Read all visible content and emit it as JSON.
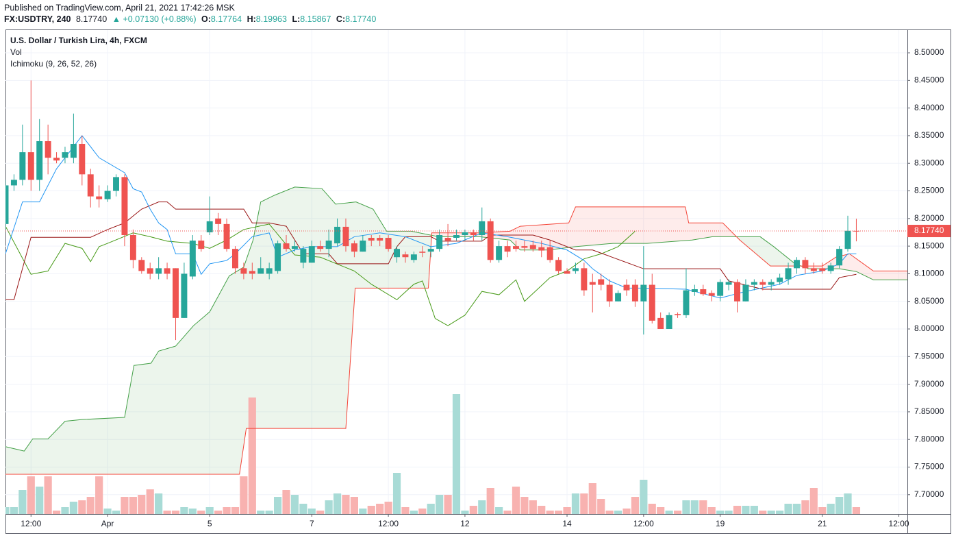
{
  "header": {
    "published": "Published on TradingView.com, April 21, 2021 17:42:26 MSK",
    "symbol": "FX:USDTRY, 240",
    "last": "8.17740",
    "change": "▲ +0.07130 (+0.88%)",
    "ohlc": [
      {
        "label": "O:",
        "value": "8.17764"
      },
      {
        "label": "H:",
        "value": "8.19963"
      },
      {
        "label": "L:",
        "value": "8.15867"
      },
      {
        "label": "C:",
        "value": "8.17740"
      }
    ]
  },
  "chart_data": {
    "type": "candlestick",
    "title": "U.S. Dollar / Turkish Lira, 4h, FXCM",
    "indicators": [
      "Vol",
      "Ichimoku (9, 26, 52, 26)"
    ],
    "categories": [
      null,
      null,
      null,
      null,
      null,
      null,
      null,
      null,
      null,
      null,
      null,
      null,
      null,
      null,
      null,
      null,
      null,
      null,
      null,
      null,
      null,
      null,
      null,
      null,
      null,
      null,
      null,
      null,
      null,
      null,
      null,
      null,
      null,
      null,
      null,
      null,
      null,
      null,
      null,
      null,
      null,
      null,
      null,
      null,
      null,
      null,
      null,
      null,
      null,
      null,
      null,
      null,
      null,
      null,
      null,
      null,
      null,
      null,
      null,
      null,
      null,
      null,
      null,
      null,
      null,
      null,
      null,
      null,
      null,
      null,
      null,
      null,
      null,
      null,
      null,
      null,
      null,
      null,
      null,
      null,
      null,
      null,
      null,
      null,
      null,
      null,
      null,
      null,
      null,
      null,
      null,
      null,
      null,
      null,
      null,
      null,
      null,
      null,
      null,
      null,
      null
    ],
    "open": [
      8.19,
      8.26,
      8.27,
      8.32,
      8.27,
      8.34,
      8.31,
      8.31,
      8.31,
      8.335,
      8.28,
      8.24,
      8.235,
      8.25,
      8.275,
      8.17,
      8.125,
      8.11,
      8.1,
      8.11,
      8.11,
      8.02,
      8.095,
      8.16,
      8.175,
      8.2,
      8.19,
      8.145,
      8.11,
      8.105,
      8.1,
      8.1,
      8.105,
      8.155,
      8.145,
      8.12,
      8.12,
      8.15,
      8.145,
      8.155,
      8.185,
      8.155,
      8.14,
      8.165,
      8.165,
      8.165,
      8.13,
      8.135,
      8.125,
      8.14,
      8.14,
      8.145,
      8.165,
      8.165,
      8.17,
      8.175,
      8.17,
      8.195,
      8.125,
      8.15,
      8.15,
      8.15,
      8.152,
      8.148,
      8.148,
      8.125,
      8.105,
      8.105,
      8.11,
      8.085,
      8.09,
      8.08,
      8.05,
      8.08,
      8.08,
      8.05,
      8.08,
      8.02,
      8.0,
      8.027,
      8.025,
      8.067,
      8.072,
      8.065,
      8.06,
      8.08,
      8.085,
      8.05,
      8.08,
      8.085,
      8.08,
      8.085,
      8.09,
      8.11,
      8.125,
      8.11,
      8.11,
      8.105,
      8.115,
      8.145,
      8.17764
    ],
    "high": [
      8.27,
      8.28,
      8.37,
      8.45,
      8.38,
      8.37,
      8.32,
      8.33,
      8.39,
      8.35,
      8.29,
      8.26,
      8.26,
      8.28,
      8.28,
      8.18,
      8.13,
      8.12,
      8.13,
      8.12,
      8.11,
      8.12,
      8.17,
      8.17,
      8.24,
      8.21,
      8.2,
      8.15,
      8.12,
      8.12,
      8.13,
      8.12,
      8.16,
      8.17,
      8.16,
      8.15,
      8.16,
      8.16,
      8.18,
      8.2,
      8.2,
      8.16,
      8.17,
      8.17,
      8.17,
      8.17,
      8.15,
      8.14,
      8.14,
      8.15,
      8.15,
      8.18,
      8.19,
      8.18,
      8.18,
      8.18,
      8.22,
      8.2,
      8.16,
      8.16,
      8.16,
      8.16,
      8.16,
      8.16,
      8.16,
      8.13,
      8.11,
      8.12,
      8.12,
      8.1,
      8.1,
      8.09,
      8.07,
      8.09,
      8.09,
      8.15,
      8.1,
      8.03,
      8.03,
      8.03,
      8.11,
      8.08,
      8.08,
      8.07,
      8.09,
      8.09,
      8.09,
      8.09,
      8.09,
      8.09,
      8.09,
      8.1,
      8.12,
      8.13,
      8.13,
      8.12,
      8.12,
      8.12,
      8.15,
      8.205,
      8.19963
    ],
    "low": [
      8.18,
      8.25,
      8.26,
      8.25,
      8.25,
      8.28,
      8.3,
      8.3,
      8.3,
      8.26,
      8.22,
      8.22,
      8.23,
      8.24,
      8.15,
      8.11,
      8.1,
      8.09,
      8.09,
      8.09,
      7.98,
      8.02,
      8.09,
      8.14,
      8.17,
      8.17,
      8.14,
      8.1,
      8.09,
      8.09,
      8.1,
      8.09,
      8.1,
      8.14,
      8.14,
      8.11,
      8.12,
      8.14,
      8.13,
      8.15,
      8.14,
      8.13,
      8.14,
      8.15,
      8.15,
      8.14,
      8.12,
      8.12,
      8.12,
      8.13,
      8.13,
      8.14,
      8.15,
      8.16,
      8.16,
      8.16,
      8.16,
      8.12,
      8.12,
      8.13,
      8.14,
      8.14,
      8.14,
      8.13,
      8.12,
      8.1,
      8.1,
      8.1,
      8.06,
      8.03,
      8.07,
      8.04,
      8.05,
      8.06,
      8.04,
      7.99,
      8.01,
      8.0,
      8.0,
      8.02,
      8.02,
      8.06,
      8.06,
      8.05,
      8.05,
      8.07,
      8.03,
      8.05,
      8.07,
      8.07,
      8.07,
      8.08,
      8.08,
      8.1,
      8.1,
      8.1,
      8.1,
      8.1,
      8.11,
      8.14,
      8.15867
    ],
    "close": [
      8.26,
      8.27,
      8.32,
      8.27,
      8.34,
      8.31,
      8.305,
      8.32,
      8.335,
      8.28,
      8.24,
      8.235,
      8.25,
      8.275,
      8.17,
      8.125,
      8.105,
      8.1,
      8.11,
      8.1,
      8.02,
      8.1,
      8.16,
      8.145,
      8.195,
      8.19,
      8.145,
      8.11,
      8.1,
      8.1,
      8.11,
      8.11,
      8.155,
      8.145,
      8.15,
      8.145,
      8.15,
      8.145,
      8.16,
      8.185,
      8.15,
      8.14,
      8.16,
      8.16,
      8.16,
      8.145,
      8.145,
      8.13,
      8.135,
      8.138,
      8.145,
      8.17,
      8.16,
      8.17,
      8.175,
      8.17,
      8.195,
      8.125,
      8.15,
      8.14,
      8.145,
      8.147,
      8.145,
      8.142,
      8.125,
      8.105,
      8.1,
      8.11,
      8.07,
      8.08,
      8.08,
      8.05,
      8.065,
      8.07,
      8.05,
      8.08,
      8.015,
      8.0,
      8.025,
      8.025,
      8.07,
      8.072,
      8.063,
      8.06,
      8.085,
      8.085,
      8.05,
      8.08,
      8.085,
      8.08,
      8.085,
      8.093,
      8.11,
      8.125,
      8.11,
      8.105,
      8.105,
      8.115,
      8.145,
      8.17775,
      8.1774
    ],
    "up_color": "#26a69a",
    "down_color": "#ef5350",
    "volume": {
      "values": [
        10,
        10,
        35,
        55,
        40,
        55,
        5,
        10,
        18,
        20,
        25,
        55,
        8,
        5,
        25,
        25,
        28,
        36,
        30,
        5,
        5,
        10,
        8,
        5,
        10,
        5,
        10,
        10,
        55,
        170,
        5,
        5,
        25,
        35,
        28,
        15,
        8,
        5,
        20,
        30,
        28,
        25,
        8,
        12,
        15,
        18,
        60,
        10,
        5,
        8,
        15,
        28,
        28,
        175,
        5,
        12,
        20,
        38,
        10,
        5,
        40,
        25,
        20,
        12,
        5,
        5,
        10,
        30,
        30,
        45,
        22,
        5,
        5,
        8,
        25,
        50,
        15,
        10,
        5,
        5,
        20,
        20,
        20,
        10,
        5,
        5,
        12,
        12,
        12,
        5,
        5,
        5,
        15,
        15,
        20,
        38,
        10,
        15,
        25,
        30,
        10
      ],
      "up_color": "#a8dbd6",
      "down_color": "#f8b2b0"
    },
    "tenkan": {
      "color": "#2196f3",
      "x": [
        0,
        2,
        4,
        6,
        9,
        11,
        14,
        15,
        16,
        17,
        18,
        19,
        20,
        22,
        23,
        24,
        26,
        27,
        29,
        31,
        32,
        34,
        36,
        39,
        41,
        44,
        47,
        50,
        53,
        56,
        59,
        63,
        66,
        68,
        69,
        71,
        73,
        75,
        80,
        84,
        87,
        91,
        93,
        96,
        98,
        99,
        100
      ],
      "values": [
        8.136,
        8.23,
        8.23,
        8.29,
        8.35,
        8.31,
        8.283,
        8.254,
        8.248,
        8.217,
        8.192,
        8.18,
        8.136,
        8.136,
        8.099,
        8.118,
        8.124,
        8.136,
        8.167,
        8.174,
        8.13,
        8.143,
        8.149,
        8.149,
        8.167,
        8.174,
        8.167,
        8.149,
        8.155,
        8.174,
        8.167,
        8.155,
        8.143,
        8.124,
        8.109,
        8.087,
        8.074,
        8.074,
        8.072,
        8.056,
        8.068,
        8.081,
        8.097,
        8.105,
        8.118,
        8.136,
        8.136
      ]
    },
    "kijun": {
      "color": "#991515",
      "x": [
        0,
        1,
        3,
        10,
        12,
        14,
        16,
        18,
        19,
        20,
        28,
        29,
        31,
        33,
        35,
        38,
        39,
        45,
        46,
        47,
        50,
        51,
        56,
        57,
        62,
        64,
        67,
        69,
        75,
        84,
        85,
        89,
        97,
        98,
        100
      ],
      "values": [
        8.053,
        8.053,
        8.166,
        8.166,
        8.18,
        8.192,
        8.217,
        8.23,
        8.23,
        8.217,
        8.217,
        8.192,
        8.192,
        8.186,
        8.136,
        8.136,
        8.118,
        8.118,
        8.149,
        8.167,
        8.167,
        8.159,
        8.159,
        8.17,
        8.17,
        8.161,
        8.143,
        8.143,
        8.109,
        8.109,
        8.087,
        8.072,
        8.072,
        8.093,
        8.099
      ]
    },
    "chikou": {
      "color": "#459915",
      "x": [
        0,
        3,
        5,
        7,
        9,
        10,
        11,
        12,
        15,
        17,
        19,
        22,
        24,
        26,
        28,
        31,
        34,
        37,
        41,
        43,
        46,
        48,
        49,
        50.5,
        52,
        54,
        56,
        58,
        60,
        61,
        64,
        66,
        68,
        70,
        72,
        74
      ],
      "values": [
        8.186,
        8.099,
        8.105,
        8.155,
        8.146,
        8.122,
        8.149,
        8.155,
        8.174,
        8.167,
        8.159,
        8.155,
        8.146,
        8.161,
        8.18,
        8.19,
        8.134,
        8.13,
        8.105,
        8.081,
        8.053,
        8.081,
        8.087,
        8.019,
        8.006,
        8.025,
        8.068,
        8.062,
        8.089,
        8.05,
        8.093,
        8.105,
        8.127,
        8.136,
        8.149,
        8.177
      ]
    },
    "span_a": {
      "color": "#43a047",
      "x": [
        0,
        2.2,
        3.2,
        5,
        7,
        9,
        14,
        15.1,
        17.1,
        18,
        20,
        22.1,
        24,
        25.1,
        26.3,
        28,
        29.1,
        30,
        31.6,
        34,
        37.2,
        38.8,
        41.2,
        43.2,
        44.8,
        47.7,
        50.9,
        55.7,
        59.3,
        60.5,
        63.8,
        67,
        71.4,
        75.4,
        80.7,
        83.1,
        88.7,
        90.3,
        92.8,
        94.4,
        98,
        100,
        102,
        106
      ],
      "values": [
        7.787,
        7.779,
        7.801,
        7.801,
        7.833,
        7.836,
        7.84,
        7.934,
        7.938,
        7.96,
        7.969,
        8.006,
        8.031,
        8.062,
        8.096,
        8.112,
        8.161,
        8.23,
        8.242,
        8.257,
        8.254,
        8.226,
        8.23,
        8.217,
        8.177,
        8.177,
        8.167,
        8.167,
        8.161,
        8.143,
        8.143,
        8.149,
        8.155,
        8.155,
        8.161,
        8.167,
        8.167,
        8.149,
        8.118,
        8.109,
        8.109,
        8.104,
        8.089,
        8.089
      ]
    },
    "span_b": {
      "color": "#f44336",
      "x": [
        0,
        27.5,
        28.3,
        40,
        41.1,
        49.7,
        50.1,
        55.7,
        59.3,
        60.5,
        66.2,
        67,
        79.9,
        80.3,
        84.3,
        86.3,
        89.9,
        96,
        97.6,
        99.2,
        102,
        106
      ],
      "values": [
        7.737,
        7.737,
        7.82,
        7.82,
        8.074,
        8.074,
        8.174,
        8.174,
        8.177,
        8.186,
        8.192,
        8.221,
        8.221,
        8.192,
        8.192,
        8.161,
        8.114,
        8.114,
        8.13,
        8.136,
        8.105,
        8.105
      ]
    },
    "cloud_up_color": "#43a047",
    "cloud_down_color": "#f44336",
    "last_price": {
      "value": 8.1774,
      "label": "8.17740"
    },
    "ylim": [
      7.665,
      8.541
    ],
    "yticks": [
      {
        "value": 8.5,
        "label": "8.50000"
      },
      {
        "value": 8.45,
        "label": "8.45000"
      },
      {
        "value": 8.4,
        "label": "8.40000"
      },
      {
        "value": 8.35,
        "label": "8.35000"
      },
      {
        "value": 8.3,
        "label": "8.30000"
      },
      {
        "value": 8.25,
        "label": "8.25000"
      },
      {
        "value": 8.2,
        "label": "8.20000"
      },
      {
        "value": 8.15,
        "label": "8.15000"
      },
      {
        "value": 8.1,
        "label": "8.10000"
      },
      {
        "value": 8.05,
        "label": "8.05000"
      },
      {
        "value": 8.0,
        "label": "8.00000"
      },
      {
        "value": 7.95,
        "label": "7.95000"
      },
      {
        "value": 7.9,
        "label": "7.90000"
      },
      {
        "value": 7.85,
        "label": "7.85000"
      },
      {
        "value": 7.8,
        "label": "7.80000"
      },
      {
        "value": 7.75,
        "label": "7.75000"
      },
      {
        "value": 7.7,
        "label": "7.70000"
      }
    ],
    "xlim": [
      0,
      106
    ],
    "xticks": [
      {
        "value": 3,
        "label": "12:00"
      },
      {
        "value": 12,
        "label": "Apr"
      },
      {
        "value": 24,
        "label": "5"
      },
      {
        "value": 36,
        "label": "7"
      },
      {
        "value": 45,
        "label": "12:00"
      },
      {
        "value": 54,
        "label": "12"
      },
      {
        "value": 66,
        "label": "14"
      },
      {
        "value": 75,
        "label": "12:00"
      },
      {
        "value": 84,
        "label": "19"
      },
      {
        "value": 96,
        "label": "21"
      },
      {
        "value": 105,
        "label": "12:00"
      }
    ],
    "grid": true
  }
}
